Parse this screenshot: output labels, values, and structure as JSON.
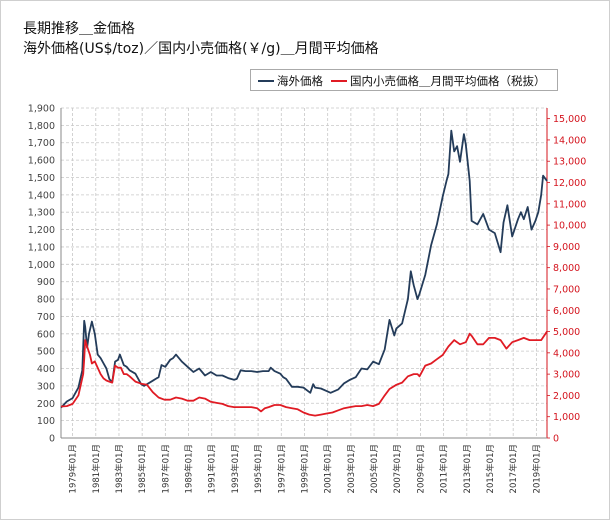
{
  "titles": {
    "line1": "長期推移＿金価格",
    "line2": "海外価格(US$/toz)／国内小売価格(￥/g)＿月間平均価格"
  },
  "colors": {
    "overseas": "#243c5a",
    "domestic": "#e01b24",
    "grid": "#c8c8c8",
    "right_axis_text": "#d4141e"
  },
  "chart_data": {
    "type": "line",
    "title": "長期推移＿金価格",
    "subtitle": "海外価格(US$/toz)／国内小売価格(￥/g)＿月間平均価格",
    "legend_position": "top-right",
    "grid": true,
    "x_range": [
      "1978-01",
      "2019-12"
    ],
    "x_ticks": [
      "1979年01月",
      "1981年01月",
      "1983年01月",
      "1985年01月",
      "1987年01月",
      "1989年01月",
      "1991年01月",
      "1993年01月",
      "1995年01月",
      "1997年01月",
      "1999年01月",
      "2001年01月",
      "2003年01月",
      "2005年01月",
      "2007年01月",
      "2009年01月",
      "2011年01月",
      "2013年01月",
      "2015年01月",
      "2017年01月",
      "2019年01月"
    ],
    "y_left": {
      "unit": "US$/toz",
      "min": 0,
      "max": 1900,
      "step": 100,
      "tick_labels": [
        "0",
        "100",
        "200",
        "300",
        "400",
        "500",
        "600",
        "700",
        "800",
        "900",
        "1,000",
        "1,100",
        "1,200",
        "1,300",
        "1,400",
        "1,500",
        "1,600",
        "1,700",
        "1,800",
        "1,900"
      ]
    },
    "y_right": {
      "unit": "円/g",
      "min": 0,
      "max": 15500,
      "step": 1000,
      "tick_labels": [
        "0",
        "1,000",
        "2,000",
        "3,000",
        "4,000",
        "5,000",
        "6,000",
        "7,000",
        "8,000",
        "9,000",
        "10,000",
        "11,000",
        "12,000",
        "13,000",
        "14,000",
        "15,000"
      ]
    },
    "series": [
      {
        "name": "海外価格",
        "axis": "left",
        "color": "#243c5a",
        "x": [
          "1978-01",
          "1978-07",
          "1979-01",
          "1979-07",
          "1979-11",
          "1980-01",
          "1980-02",
          "1980-04",
          "1980-06",
          "1980-09",
          "1980-12",
          "1981-03",
          "1981-06",
          "1981-09",
          "1981-12",
          "1982-03",
          "1982-06",
          "1982-09",
          "1982-12",
          "1983-02",
          "1983-06",
          "1983-09",
          "1983-12",
          "1984-06",
          "1984-12",
          "1985-03",
          "1985-06",
          "1985-12",
          "1986-03",
          "1986-06",
          "1986-09",
          "1987-01",
          "1987-06",
          "1987-09",
          "1987-12",
          "1988-06",
          "1988-12",
          "1989-06",
          "1989-12",
          "1990-06",
          "1990-12",
          "1991-06",
          "1991-12",
          "1992-06",
          "1992-12",
          "1993-03",
          "1993-07",
          "1993-12",
          "1994-06",
          "1994-12",
          "1995-06",
          "1995-12",
          "1996-02",
          "1996-06",
          "1996-12",
          "1997-03",
          "1997-06",
          "1997-12",
          "1998-06",
          "1998-12",
          "1999-07",
          "1999-10",
          "1999-12",
          "2000-06",
          "2000-12",
          "2001-04",
          "2001-12",
          "2002-06",
          "2002-12",
          "2003-06",
          "2003-12",
          "2004-06",
          "2004-12",
          "2005-06",
          "2005-12",
          "2006-05",
          "2006-10",
          "2006-12",
          "2007-06",
          "2007-12",
          "2008-03",
          "2008-06",
          "2008-10",
          "2008-12",
          "2009-06",
          "2009-12",
          "2010-06",
          "2010-12",
          "2011-04",
          "2011-06",
          "2011-09",
          "2011-12",
          "2012-03",
          "2012-06",
          "2012-10",
          "2012-12",
          "2013-04",
          "2013-06",
          "2013-12",
          "2014-06",
          "2014-12",
          "2015-06",
          "2015-12",
          "2016-03",
          "2016-07",
          "2016-12",
          "2017-06",
          "2017-09",
          "2017-12",
          "2018-04",
          "2018-08",
          "2018-12",
          "2019-03",
          "2019-06",
          "2019-08",
          "2019-12"
        ],
        "values": [
          175,
          210,
          230,
          290,
          390,
          675,
          640,
          520,
          600,
          670,
          600,
          480,
          460,
          430,
          400,
          340,
          320,
          440,
          450,
          480,
          420,
          410,
          390,
          370,
          310,
          300,
          310,
          330,
          340,
          350,
          420,
          410,
          450,
          460,
          480,
          440,
          410,
          380,
          400,
          360,
          380,
          360,
          360,
          345,
          335,
          340,
          390,
          385,
          385,
          380,
          385,
          385,
          405,
          385,
          370,
          350,
          340,
          295,
          295,
          290,
          260,
          310,
          290,
          285,
          270,
          260,
          280,
          315,
          335,
          350,
          400,
          395,
          440,
          425,
          510,
          680,
          590,
          630,
          660,
          800,
          960,
          880,
          800,
          830,
          940,
          1110,
          1230,
          1390,
          1480,
          1520,
          1770,
          1650,
          1680,
          1590,
          1750,
          1690,
          1480,
          1250,
          1230,
          1290,
          1200,
          1180,
          1070,
          1240,
          1340,
          1160,
          1260,
          1300,
          1260,
          1330,
          1200,
          1250,
          1300,
          1400,
          1510,
          1480
        ]
      },
      {
        "name": "国内小売価格＿月間平均価格（税抜）",
        "axis": "right",
        "color": "#e01b24",
        "x": [
          "1978-01",
          "1978-07",
          "1979-01",
          "1979-07",
          "1979-12",
          "1980-01",
          "1980-02",
          "1980-04",
          "1980-07",
          "1980-09",
          "1980-12",
          "1981-03",
          "1981-06",
          "1981-09",
          "1981-12",
          "1982-03",
          "1982-06",
          "1982-09",
          "1982-12",
          "1983-03",
          "1983-06",
          "1983-09",
          "1983-12",
          "1984-06",
          "1984-12",
          "1985-06",
          "1985-12",
          "1986-06",
          "1986-12",
          "1987-06",
          "1987-12",
          "1988-06",
          "1988-12",
          "1989-06",
          "1989-12",
          "1990-06",
          "1990-12",
          "1991-06",
          "1991-12",
          "1992-06",
          "1992-12",
          "1993-06",
          "1993-12",
          "1994-06",
          "1994-12",
          "1995-04",
          "1995-08",
          "1995-12",
          "1996-06",
          "1996-12",
          "1997-06",
          "1997-12",
          "1998-06",
          "1998-12",
          "1999-06",
          "1999-12",
          "2000-06",
          "2000-12",
          "2001-06",
          "2001-12",
          "2002-06",
          "2002-12",
          "2003-06",
          "2003-12",
          "2004-06",
          "2004-12",
          "2005-06",
          "2005-12",
          "2006-05",
          "2006-12",
          "2007-06",
          "2007-12",
          "2008-06",
          "2008-10",
          "2008-12",
          "2009-06",
          "2009-12",
          "2010-06",
          "2010-12",
          "2011-06",
          "2011-12",
          "2012-06",
          "2012-12",
          "2013-04",
          "2013-06",
          "2013-12",
          "2014-06",
          "2014-12",
          "2015-06",
          "2015-12",
          "2016-06",
          "2016-12",
          "2017-06",
          "2017-12",
          "2018-06",
          "2018-12",
          "2019-06",
          "2019-12"
        ],
        "values": [
          1480,
          1500,
          1600,
          2000,
          3000,
          3700,
          4600,
          4300,
          3900,
          3500,
          3600,
          3300,
          3000,
          2800,
          2700,
          2650,
          2600,
          3400,
          3300,
          3300,
          3000,
          3000,
          2900,
          2650,
          2550,
          2500,
          2150,
          1900,
          1800,
          1800,
          1900,
          1850,
          1750,
          1750,
          1900,
          1850,
          1700,
          1650,
          1600,
          1500,
          1450,
          1450,
          1450,
          1450,
          1400,
          1250,
          1400,
          1450,
          1550,
          1550,
          1450,
          1400,
          1350,
          1200,
          1100,
          1050,
          1100,
          1150,
          1200,
          1300,
          1400,
          1450,
          1500,
          1500,
          1550,
          1500,
          1600,
          2000,
          2300,
          2500,
          2600,
          2900,
          3000,
          3000,
          2900,
          3400,
          3500,
          3700,
          3900,
          4300,
          4600,
          4400,
          4500,
          4900,
          4800,
          4400,
          4400,
          4700,
          4700,
          4600,
          4200,
          4500,
          4600,
          4700,
          4600,
          4600,
          4600,
          5000
        ]
      }
    ]
  }
}
